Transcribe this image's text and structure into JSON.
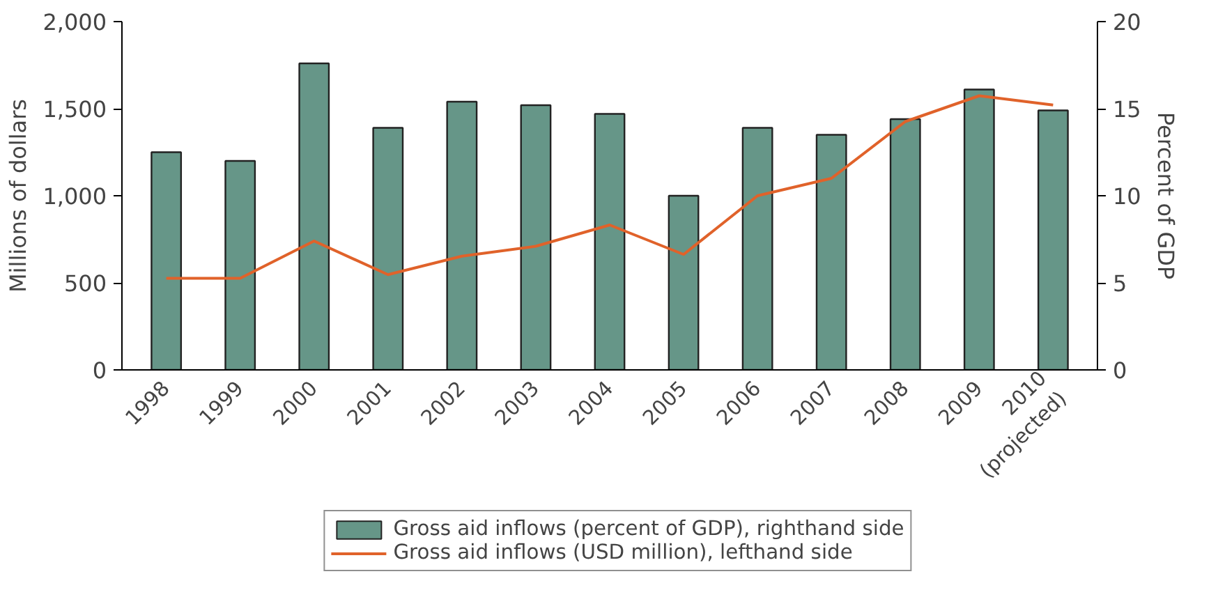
{
  "chart_data": {
    "type": "bar",
    "ylabel": "Millions of dollars",
    "y2label": "Percent of GDP",
    "categories": [
      "1998",
      "1999",
      "2000",
      "2001",
      "2002",
      "2003",
      "2004",
      "2005",
      "2006",
      "2007",
      "2008",
      "2009",
      "2010\n(projected)"
    ],
    "series": [
      {
        "name": "Gross aid inflows (percent of GDP), righthand side",
        "axis": "y2",
        "color": "#669688",
        "values": [
          12.5,
          12.0,
          17.6,
          13.9,
          15.4,
          15.2,
          14.7,
          10.0,
          13.9,
          13.5,
          14.4,
          16.1,
          14.9
        ]
      },
      {
        "name": "Gross aid inflows (USD million), lefthand side",
        "type": "line",
        "color": "#e0622a",
        "values": [
          526,
          526,
          740,
          547,
          653,
          710,
          832,
          663,
          1000,
          1100,
          1426,
          1574,
          1521
        ]
      }
    ],
    "ylim": [
      0,
      2000
    ],
    "yticks": [
      0,
      {
        "value": 500,
        "label": "500"
      },
      {
        "value": 1000,
        "label": "1,000"
      },
      {
        "value": 1500,
        "label": "1,500"
      },
      {
        "value": 2000,
        "label": "2,000"
      }
    ],
    "y2lim": [
      0,
      20
    ],
    "y2ticks": [
      0,
      5,
      10,
      15,
      20
    ],
    "grid": false,
    "legend": "bottom",
    "marker": "none",
    "line_style": "solid"
  }
}
